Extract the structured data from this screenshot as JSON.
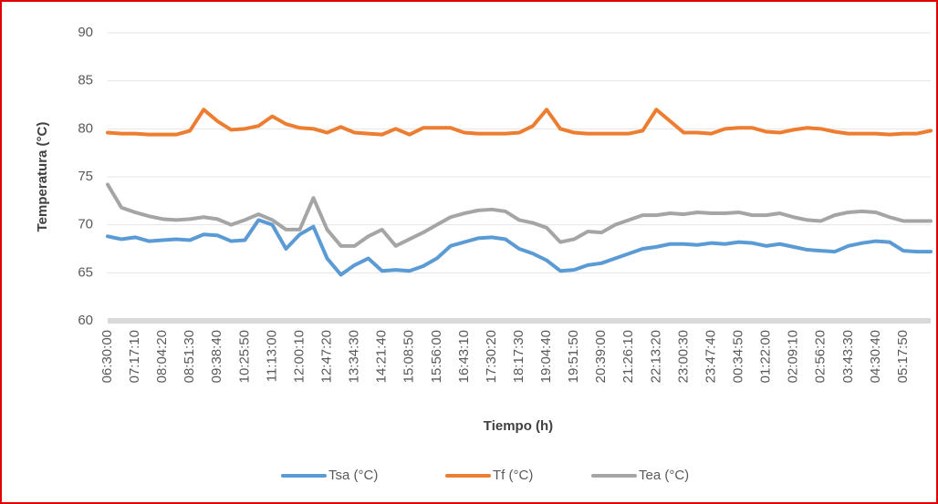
{
  "chart_data": {
    "type": "line",
    "x_label": "Tiempo (h)",
    "y_label": "Temperatura (°C)",
    "categories": [
      "06:30:00",
      null,
      "07:17:10",
      null,
      "08:04:20",
      null,
      "08:51:30",
      null,
      "09:38:40",
      null,
      "10:25:50",
      null,
      "11:13:00",
      null,
      "12:00:10",
      null,
      "12:47:20",
      null,
      "13:34:30",
      null,
      "14:21:40",
      null,
      "15:08:50",
      null,
      "15:56:00",
      null,
      "16:43:10",
      null,
      "17:30:20",
      null,
      "18:17:30",
      null,
      "19:04:40",
      null,
      "19:51:50",
      null,
      "20:39:00",
      null,
      "21:26:10",
      null,
      "22:13:20",
      null,
      "23:00:30",
      null,
      "23:47:40",
      null,
      "00:34:50",
      null,
      "01:22:00",
      null,
      "02:09:10",
      null,
      "02:56:20",
      null,
      "03:43:30",
      null,
      "04:30:40",
      null,
      "05:17:50",
      null,
      null
    ],
    "series": [
      {
        "name": "Tsa (°C)",
        "color": "#5b9bd5",
        "values": [
          68.8,
          68.5,
          68.7,
          68.3,
          68.4,
          68.5,
          68.4,
          69.0,
          68.9,
          68.3,
          68.4,
          70.5,
          70.0,
          67.5,
          69.0,
          69.8,
          66.5,
          64.8,
          65.8,
          66.5,
          65.2,
          65.3,
          65.2,
          65.7,
          66.5,
          67.8,
          68.2,
          68.6,
          68.7,
          68.5,
          67.5,
          67.0,
          66.3,
          65.2,
          65.3,
          65.8,
          66.0,
          66.5,
          67.0,
          67.5,
          67.7,
          68.0,
          68.0,
          67.9,
          68.1,
          68.0,
          68.2,
          68.1,
          67.8,
          68.0,
          67.7,
          67.4,
          67.3,
          67.2,
          67.8,
          68.1,
          68.3,
          68.2,
          67.3,
          67.2,
          67.2
        ]
      },
      {
        "name": "Tf (°C)",
        "color": "#ed7d31",
        "values": [
          79.6,
          79.5,
          79.5,
          79.4,
          79.4,
          79.4,
          79.8,
          82.0,
          80.8,
          79.9,
          80.0,
          80.3,
          81.3,
          80.5,
          80.1,
          80.0,
          79.6,
          80.2,
          79.6,
          79.5,
          79.4,
          80.0,
          79.4,
          80.1,
          80.1,
          80.1,
          79.6,
          79.5,
          79.5,
          79.5,
          79.6,
          80.3,
          82.0,
          80.0,
          79.6,
          79.5,
          79.5,
          79.5,
          79.5,
          79.8,
          82.0,
          80.8,
          79.6,
          79.6,
          79.5,
          80.0,
          80.1,
          80.1,
          79.7,
          79.6,
          79.9,
          80.1,
          80.0,
          79.7,
          79.5,
          79.5,
          79.5,
          79.4,
          79.5,
          79.5,
          79.8
        ]
      },
      {
        "name": "Tea (°C)",
        "color": "#a5a5a5",
        "values": [
          74.2,
          71.8,
          71.3,
          70.9,
          70.6,
          70.5,
          70.6,
          70.8,
          70.6,
          70.0,
          70.5,
          71.1,
          70.5,
          69.5,
          69.5,
          72.8,
          69.5,
          67.8,
          67.8,
          68.8,
          69.5,
          67.8,
          68.5,
          69.2,
          70.0,
          70.8,
          71.2,
          71.5,
          71.6,
          71.4,
          70.5,
          70.2,
          69.7,
          68.2,
          68.5,
          69.3,
          69.2,
          70.0,
          70.5,
          71.0,
          71.0,
          71.2,
          71.1,
          71.3,
          71.2,
          71.2,
          71.3,
          71.0,
          71.0,
          71.2,
          70.8,
          70.5,
          70.4,
          71.0,
          71.3,
          71.4,
          71.3,
          70.8,
          70.4,
          70.4,
          70.4
        ]
      }
    ],
    "ylim": [
      60,
      90
    ],
    "yticks": [
      60,
      65,
      70,
      75,
      80,
      85,
      90
    ],
    "grid": true,
    "legend": "bottom"
  }
}
